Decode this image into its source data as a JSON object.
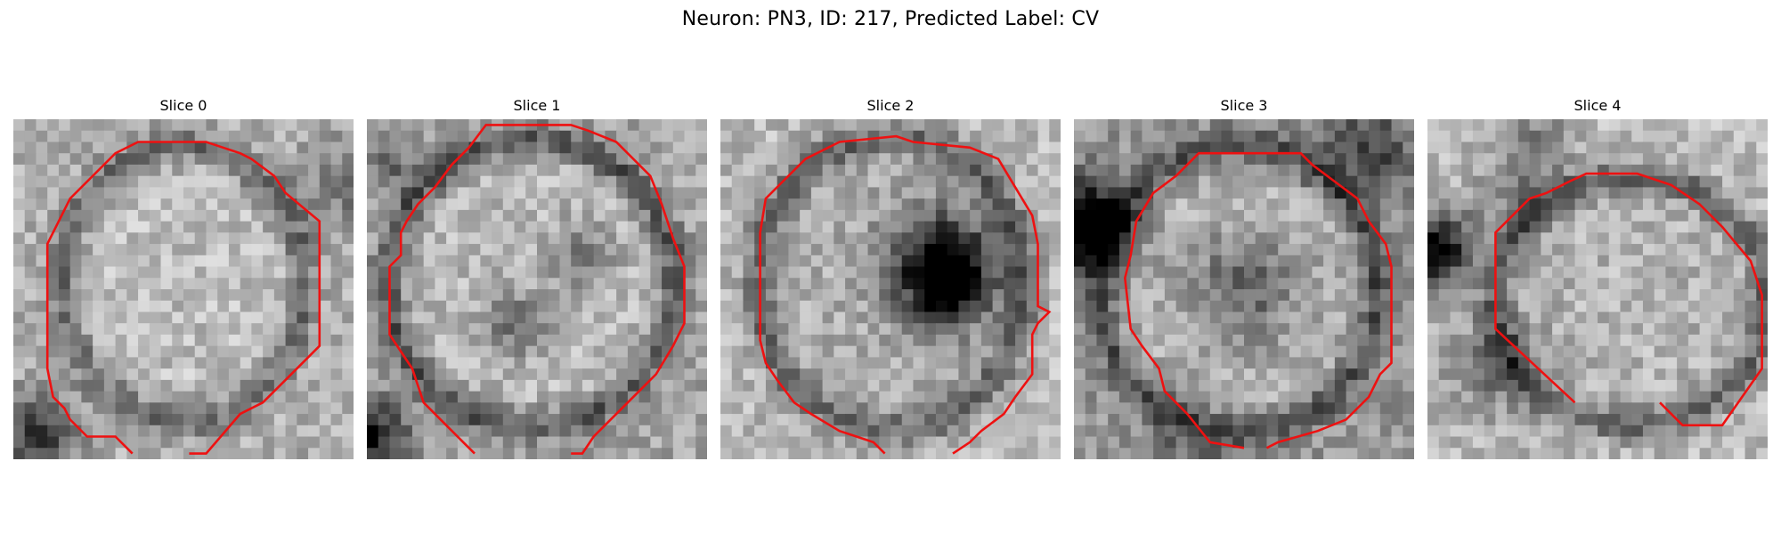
{
  "figure": {
    "title": "Neuron: PN3, ID: 217, Predicted Label: CV"
  },
  "contour_color": "#ee1111",
  "slices": [
    {
      "label": "Slice 0"
    },
    {
      "label": "Slice 1"
    },
    {
      "label": "Slice 2"
    },
    {
      "label": "Slice 3"
    },
    {
      "label": "Slice 4"
    }
  ]
}
